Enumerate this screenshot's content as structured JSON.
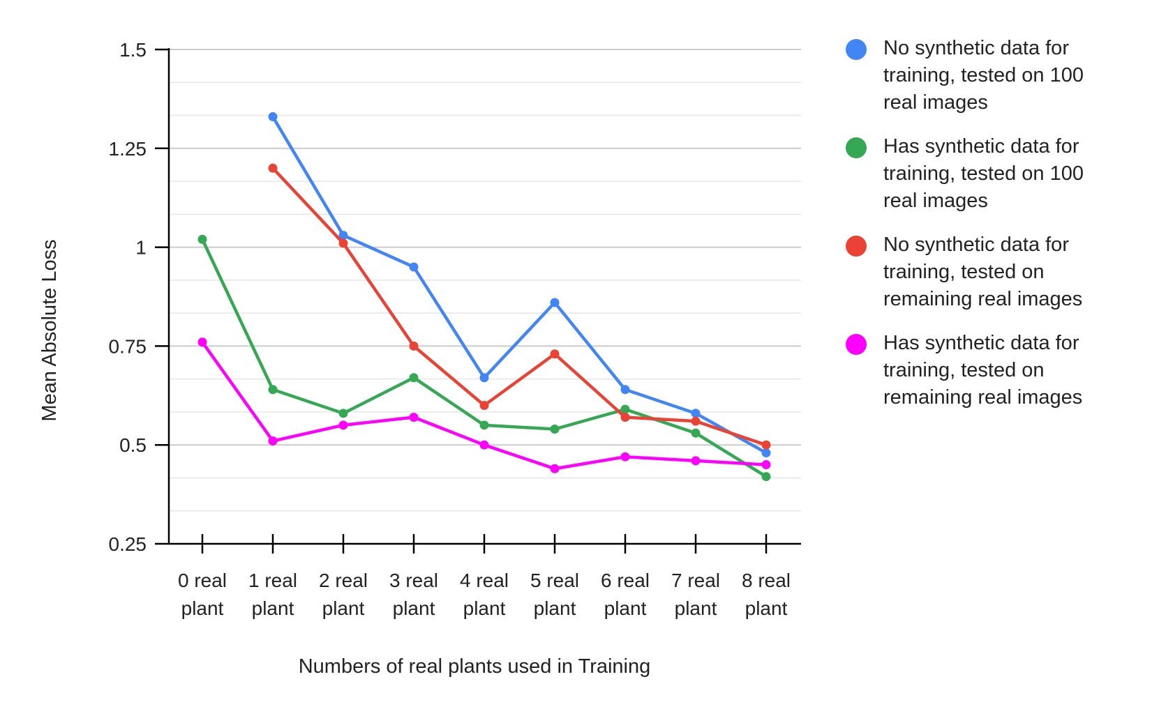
{
  "chart_data": {
    "type": "line",
    "title": "",
    "xlabel": "Numbers of real plants used in Training",
    "ylabel": "Mean Absolute Loss",
    "categories": [
      [
        "0 real",
        "plant"
      ],
      [
        "1 real",
        "plant"
      ],
      [
        "2 real",
        "plant"
      ],
      [
        "3 real",
        "plant"
      ],
      [
        "4 real",
        "plant"
      ],
      [
        "5 real",
        "plant"
      ],
      [
        "6 real",
        "plant"
      ],
      [
        "7 real",
        "plant"
      ],
      [
        "8 real",
        "plant"
      ]
    ],
    "yticks": [
      "0.25",
      "0.5",
      "0.75",
      "1",
      "1.25",
      "1.5"
    ],
    "ylim": [
      0.25,
      1.5
    ],
    "minor_grid_step": 0.083333,
    "grid": true,
    "legend_position": "right",
    "series": [
      {
        "name": "No synthetic data for training, tested on 100 real images",
        "legend_lines": [
          "No synthetic data for",
          "training, tested on 100",
          "real images"
        ],
        "color": "#4285F4",
        "values": [
          null,
          1.33,
          1.03,
          0.95,
          0.67,
          0.86,
          0.64,
          0.58,
          0.48
        ]
      },
      {
        "name": "Has synthetic data for training, tested on 100 real images",
        "legend_lines": [
          "Has synthetic data for",
          "training, tested on 100",
          "real images"
        ],
        "color": "#34A853",
        "values": [
          1.02,
          0.64,
          0.58,
          0.67,
          0.55,
          0.54,
          0.59,
          0.53,
          0.42
        ]
      },
      {
        "name": "No synthetic data for training, tested on remaining real images",
        "legend_lines": [
          "No synthetic data for",
          "training, tested on",
          "remaining real images"
        ],
        "color": "#EA4335",
        "values": [
          null,
          1.2,
          1.01,
          0.75,
          0.6,
          0.73,
          0.57,
          0.56,
          0.5
        ]
      },
      {
        "name": "Has synthetic data for training, tested on remaining real images",
        "legend_lines": [
          "Has synthetic data for",
          "training, tested on",
          "remaining real images"
        ],
        "color": "#FF00FF",
        "values": [
          0.76,
          0.51,
          0.55,
          0.57,
          0.5,
          0.44,
          0.47,
          0.46,
          0.45
        ]
      }
    ]
  }
}
